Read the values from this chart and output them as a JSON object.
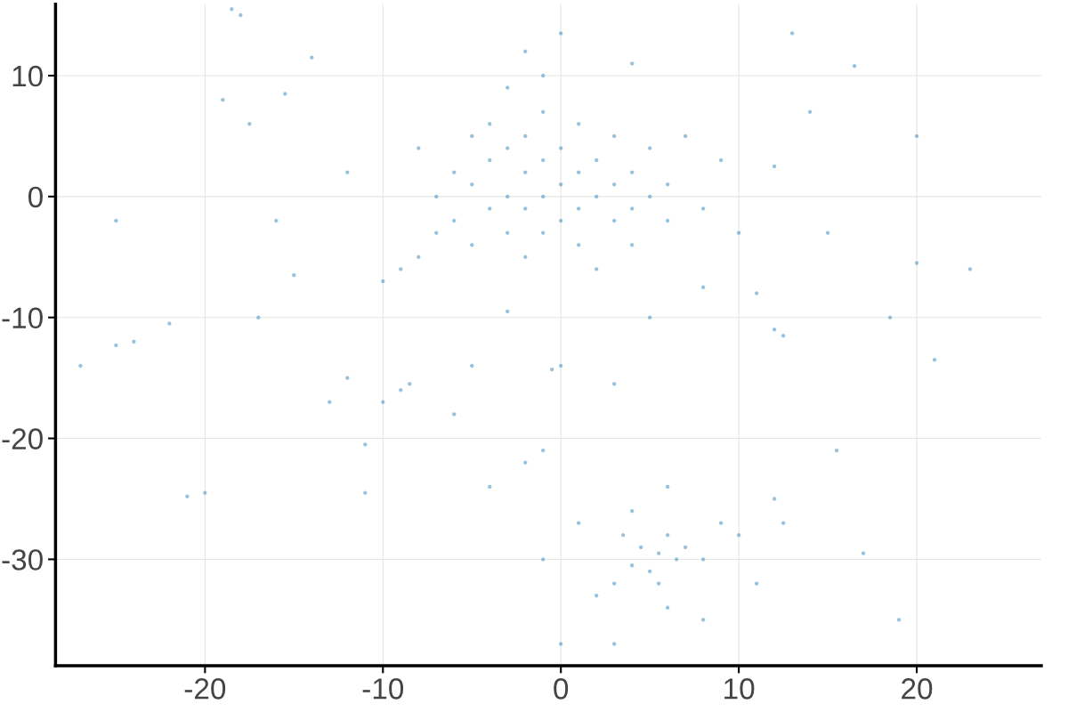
{
  "chart_data": {
    "type": "scatter",
    "marker": "circle",
    "grid": true,
    "xlim": [
      -28.4,
      27
    ],
    "ylim": [
      -38.8,
      15.9
    ],
    "xticks": [
      -20,
      -10,
      0,
      10,
      20
    ],
    "yticks": [
      -30,
      -20,
      -10,
      0,
      10
    ],
    "series": [
      {
        "color": "#1f77b4",
        "x": [
          -5,
          -4,
          -4,
          -3,
          -3,
          -3,
          -2,
          -2,
          -2,
          -1,
          -1,
          -1,
          0,
          0,
          0,
          1,
          1,
          2,
          2,
          3,
          3,
          4,
          4,
          5,
          -6,
          -6,
          -5,
          -4,
          -1,
          1,
          3,
          5,
          6,
          6,
          4,
          1,
          -2,
          -5,
          -7,
          -3,
          -1,
          2,
          7,
          8,
          -8,
          -2,
          0,
          4,
          -7,
          9,
          -9,
          -10,
          -8,
          -9,
          -8.5,
          -10,
          0,
          -0.5,
          12.5,
          12,
          -24,
          -25,
          -20,
          -21,
          -18.5,
          -18,
          -22,
          -27,
          -25,
          -16,
          -15,
          -14,
          -12,
          -12,
          -11,
          -11,
          16.5,
          13,
          14,
          18.5,
          20,
          21,
          23,
          15,
          10,
          11,
          8,
          12,
          5,
          -3,
          -5,
          3,
          -1,
          -2,
          -4,
          -13,
          -6,
          -17.5,
          -15.5,
          -17,
          -19,
          15.5,
          17,
          19,
          12,
          20,
          5.5,
          4.5,
          6.5,
          5,
          6,
          4,
          7,
          5.5,
          3.5,
          8,
          3,
          2,
          6,
          9,
          12.5,
          11,
          0,
          3,
          4,
          6,
          10,
          -1,
          1,
          8
        ],
        "values": [
          1,
          3,
          -1,
          4,
          0,
          -3,
          2,
          -1,
          5,
          0,
          3,
          -3,
          1,
          4,
          -2,
          2,
          -1,
          0,
          3,
          1,
          -2,
          2,
          -1,
          0,
          2,
          -2,
          5,
          6,
          7,
          6,
          5,
          4,
          1,
          -2,
          -4,
          -4,
          -5,
          -4,
          0,
          9,
          10,
          -6,
          5,
          -1,
          4,
          12,
          13.5,
          11,
          -3,
          3,
          -6,
          -7,
          -5,
          -16,
          -15.5,
          -17,
          -14,
          -14.3,
          -11.5,
          -11,
          -12,
          -12.3,
          -24.5,
          -24.8,
          15.5,
          15,
          -10.5,
          -14,
          -2,
          -2,
          -6.5,
          11.5,
          2,
          -15,
          -20.5,
          -24.5,
          10.8,
          13.5,
          7,
          -10,
          5,
          -13.5,
          -6,
          -3,
          -3,
          -8,
          -7.5,
          2.5,
          -10,
          -9.5,
          -14,
          -15.5,
          -21,
          -22,
          -24,
          -17,
          -18,
          6,
          8.5,
          -10,
          8,
          -21,
          -29.5,
          -35,
          -25,
          -5.5,
          -29.5,
          -29,
          -30,
          -31,
          -28,
          -30.5,
          -29,
          -32,
          -28,
          -30,
          -32,
          -33,
          -34,
          -27,
          -27,
          -32,
          -37,
          -37,
          -26,
          -24,
          -28,
          -30,
          -27,
          -35
        ]
      }
    ]
  }
}
